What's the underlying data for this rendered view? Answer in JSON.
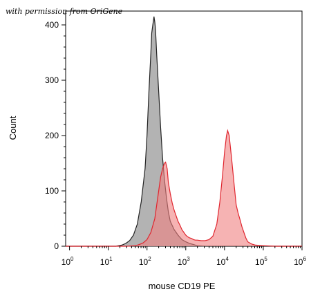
{
  "watermark": "with permission from OriGene",
  "chart_data": {
    "type": "area",
    "title": "",
    "xlabel": "mouse CD19 PE",
    "ylabel": "Count",
    "xscale": "log",
    "xlim_log10": [
      -0.1,
      6
    ],
    "ylim": [
      0,
      425
    ],
    "x_ticks": [
      {
        "base": "10",
        "exp": "0",
        "log10": 0
      },
      {
        "base": "10",
        "exp": "1",
        "log10": 1
      },
      {
        "base": "10",
        "exp": "2",
        "log10": 2
      },
      {
        "base": "10",
        "exp": "3",
        "log10": 3
      },
      {
        "base": "10",
        "exp": "4",
        "log10": 4
      },
      {
        "base": "10",
        "exp": "5",
        "log10": 5
      },
      {
        "base": "10",
        "exp": "6",
        "log10": 6
      }
    ],
    "y_ticks": [
      0,
      100,
      200,
      300,
      400
    ],
    "grid": false,
    "legend": "none",
    "series": [
      {
        "color": "#808080",
        "fill": "#a6a6a6",
        "stroke": "#222222",
        "points_log10_x": [
          [
            -0.1,
            0
          ],
          [
            1.2,
            0
          ],
          [
            1.35,
            2
          ],
          [
            1.45,
            5
          ],
          [
            1.55,
            10
          ],
          [
            1.65,
            20
          ],
          [
            1.75,
            40
          ],
          [
            1.85,
            80
          ],
          [
            1.95,
            140
          ],
          [
            2.0,
            200
          ],
          [
            2.05,
            280
          ],
          [
            2.1,
            350
          ],
          [
            2.12,
            385
          ],
          [
            2.15,
            400
          ],
          [
            2.18,
            415
          ],
          [
            2.2,
            405
          ],
          [
            2.22,
            390
          ],
          [
            2.25,
            345
          ],
          [
            2.3,
            280
          ],
          [
            2.35,
            215
          ],
          [
            2.4,
            160
          ],
          [
            2.45,
            120
          ],
          [
            2.5,
            88
          ],
          [
            2.55,
            62
          ],
          [
            2.6,
            45
          ],
          [
            2.7,
            30
          ],
          [
            2.8,
            20
          ],
          [
            2.9,
            12
          ],
          [
            3.0,
            8
          ],
          [
            3.1,
            5
          ],
          [
            3.2,
            3
          ],
          [
            3.3,
            1
          ],
          [
            3.5,
            0
          ],
          [
            6.0,
            0
          ]
        ]
      },
      {
        "color": "#e0252e",
        "fill": "#f08080",
        "stroke": "#e0252e",
        "points_log10_x": [
          [
            -0.1,
            0
          ],
          [
            1.5,
            0
          ],
          [
            1.7,
            1
          ],
          [
            1.8,
            3
          ],
          [
            1.9,
            6
          ],
          [
            2.0,
            12
          ],
          [
            2.1,
            25
          ],
          [
            2.2,
            50
          ],
          [
            2.25,
            75
          ],
          [
            2.3,
            100
          ],
          [
            2.35,
            125
          ],
          [
            2.4,
            140
          ],
          [
            2.45,
            150
          ],
          [
            2.48,
            152
          ],
          [
            2.52,
            140
          ],
          [
            2.55,
            115
          ],
          [
            2.6,
            95
          ],
          [
            2.65,
            78
          ],
          [
            2.7,
            65
          ],
          [
            2.75,
            55
          ],
          [
            2.8,
            45
          ],
          [
            2.85,
            38
          ],
          [
            2.9,
            30
          ],
          [
            2.95,
            25
          ],
          [
            3.0,
            20
          ],
          [
            3.05,
            17
          ],
          [
            3.1,
            15
          ],
          [
            3.15,
            14
          ],
          [
            3.2,
            12
          ],
          [
            3.25,
            11
          ],
          [
            3.3,
            11
          ],
          [
            3.4,
            10
          ],
          [
            3.5,
            10
          ],
          [
            3.6,
            12
          ],
          [
            3.7,
            18
          ],
          [
            3.8,
            40
          ],
          [
            3.88,
            80
          ],
          [
            3.95,
            130
          ],
          [
            4.0,
            170
          ],
          [
            4.05,
            200
          ],
          [
            4.08,
            209
          ],
          [
            4.12,
            200
          ],
          [
            4.18,
            160
          ],
          [
            4.25,
            110
          ],
          [
            4.3,
            75
          ],
          [
            4.35,
            60
          ],
          [
            4.4,
            48
          ],
          [
            4.45,
            35
          ],
          [
            4.5,
            25
          ],
          [
            4.55,
            15
          ],
          [
            4.6,
            8
          ],
          [
            4.7,
            4
          ],
          [
            4.8,
            2
          ],
          [
            5.0,
            1
          ],
          [
            5.3,
            0
          ],
          [
            6.0,
            0
          ]
        ]
      }
    ]
  }
}
